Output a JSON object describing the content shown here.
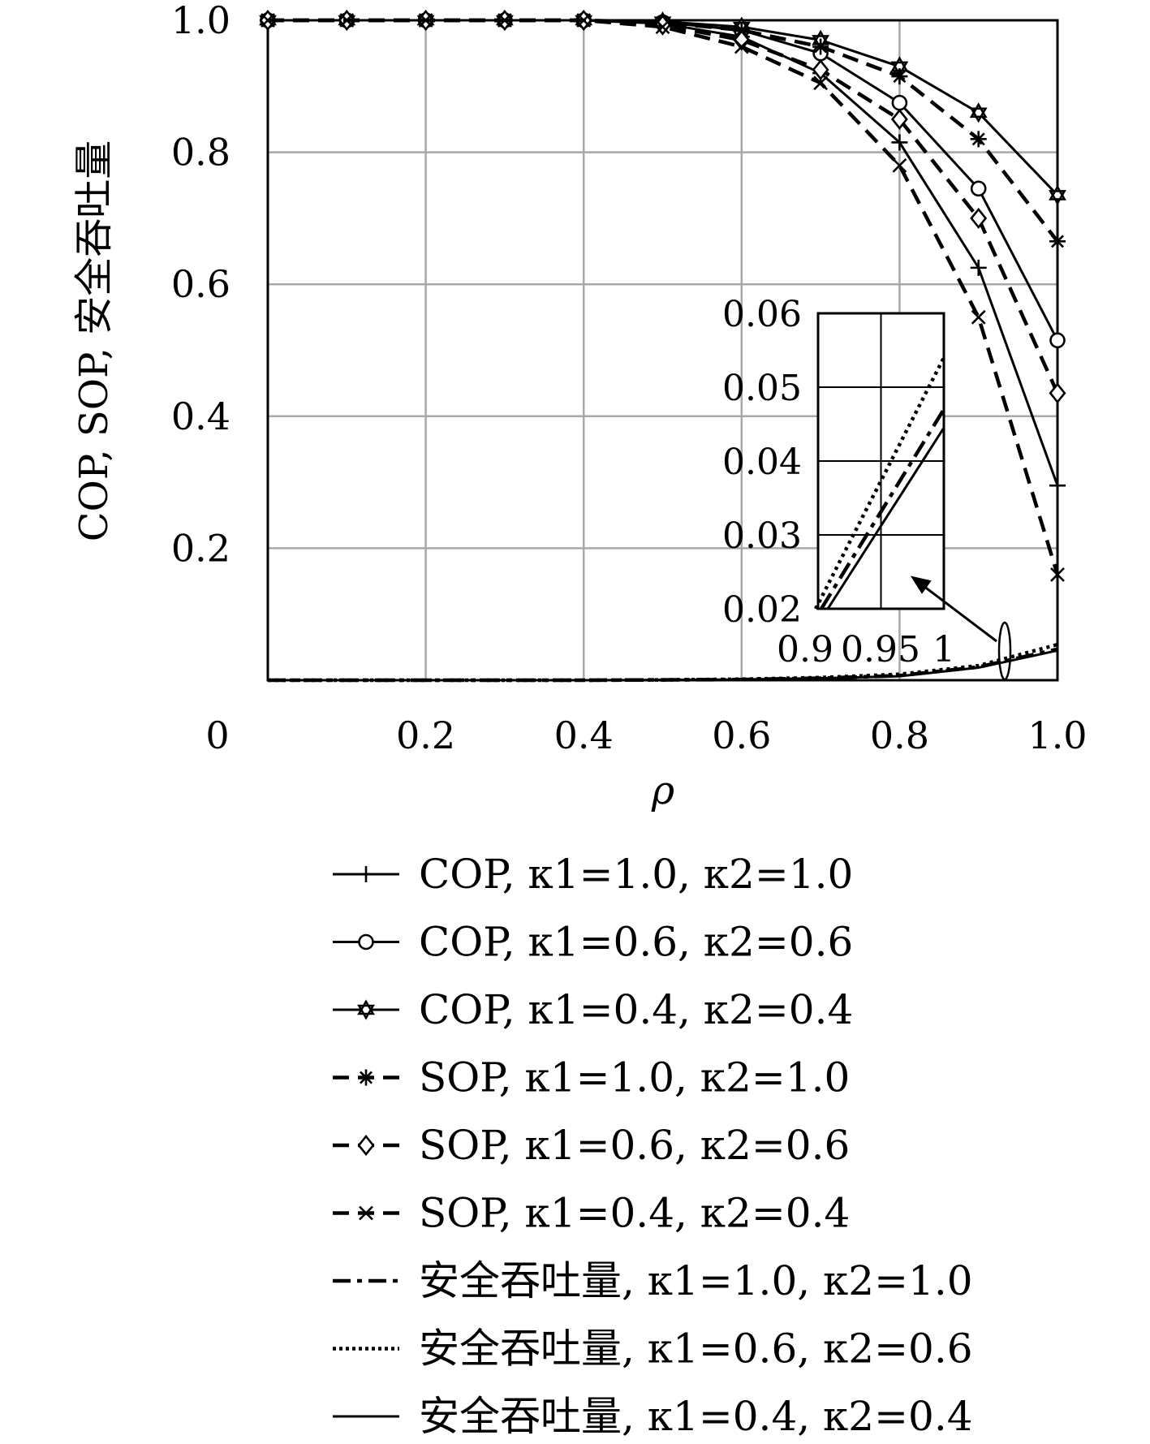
{
  "chart_data": {
    "type": "line",
    "xlabel": "ρ",
    "ylabel": "COP, SOP, 安全吞吐量",
    "xlim": [
      0,
      1.0
    ],
    "ylim": [
      0,
      1.0
    ],
    "x_ticks": [
      "0",
      "0.2",
      "0.4",
      "0.6",
      "0.8",
      "1.0"
    ],
    "y_ticks": [
      "0.2",
      "0.4",
      "0.6",
      "0.8",
      "1.0"
    ],
    "grid": true,
    "legend_position": "below",
    "series": [
      {
        "name": "COP, κ1=1.0, κ2=1.0",
        "linestyle": "solid",
        "marker": "plus",
        "x": [
          0,
          0.1,
          0.2,
          0.3,
          0.4,
          0.5,
          0.6,
          0.7,
          0.8,
          0.9,
          1.0
        ],
        "y": [
          1.0,
          1.0,
          1.0,
          1.0,
          1.0,
          0.995,
          0.975,
          0.92,
          0.815,
          0.625,
          0.295
        ]
      },
      {
        "name": "COP, κ1=0.6, κ2=0.6",
        "linestyle": "solid",
        "marker": "circle",
        "x": [
          0,
          0.1,
          0.2,
          0.3,
          0.4,
          0.5,
          0.6,
          0.7,
          0.8,
          0.9,
          1.0
        ],
        "y": [
          1.0,
          1.0,
          1.0,
          1.0,
          1.0,
          0.997,
          0.985,
          0.95,
          0.875,
          0.745,
          0.515
        ]
      },
      {
        "name": "COP, κ1=0.4, κ2=0.4",
        "linestyle": "solid",
        "marker": "star",
        "x": [
          0,
          0.1,
          0.2,
          0.3,
          0.4,
          0.5,
          0.6,
          0.7,
          0.8,
          0.9,
          1.0
        ],
        "y": [
          1.0,
          1.0,
          1.0,
          1.0,
          1.0,
          0.998,
          0.99,
          0.97,
          0.93,
          0.86,
          0.735
        ]
      },
      {
        "name": "SOP, κ1=1.0, κ2=1.0",
        "linestyle": "dashed",
        "marker": "asterisk",
        "x": [
          0,
          0.1,
          0.2,
          0.3,
          0.4,
          0.5,
          0.6,
          0.7,
          0.8,
          0.9,
          1.0
        ],
        "y": [
          1.0,
          1.0,
          1.0,
          1.0,
          1.0,
          0.997,
          0.985,
          0.96,
          0.915,
          0.82,
          0.665
        ]
      },
      {
        "name": "SOP, κ1=0.6, κ2=0.6",
        "linestyle": "dashed",
        "marker": "diamond",
        "x": [
          0,
          0.1,
          0.2,
          0.3,
          0.4,
          0.5,
          0.6,
          0.7,
          0.8,
          0.9,
          1.0
        ],
        "y": [
          1.0,
          1.0,
          1.0,
          1.0,
          1.0,
          0.993,
          0.97,
          0.925,
          0.85,
          0.7,
          0.435
        ]
      },
      {
        "name": "SOP, κ1=0.4, κ2=0.4",
        "linestyle": "dashed",
        "marker": "x",
        "x": [
          0,
          0.1,
          0.2,
          0.3,
          0.4,
          0.5,
          0.6,
          0.7,
          0.8,
          0.9,
          1.0
        ],
        "y": [
          1.0,
          1.0,
          1.0,
          1.0,
          1.0,
          0.99,
          0.96,
          0.905,
          0.78,
          0.55,
          0.16
        ]
      },
      {
        "name": "安全吞吐量, κ1=1.0, κ2=1.0",
        "linestyle": "dashdot",
        "marker": "none",
        "x": [
          0,
          0.1,
          0.2,
          0.3,
          0.4,
          0.5,
          0.6,
          0.7,
          0.8,
          0.9,
          1.0
        ],
        "y": [
          0,
          0,
          0,
          0,
          0,
          0.0005,
          0.001,
          0.003,
          0.007,
          0.02,
          0.047
        ]
      },
      {
        "name": "安全吞吐量, κ1=0.6, κ2=0.6",
        "linestyle": "dotted",
        "marker": "none",
        "x": [
          0,
          0.1,
          0.2,
          0.3,
          0.4,
          0.5,
          0.6,
          0.7,
          0.8,
          0.9,
          1.0
        ],
        "y": [
          0,
          0,
          0,
          0,
          0,
          0.0005,
          0.0015,
          0.004,
          0.009,
          0.022,
          0.054
        ]
      },
      {
        "name": "安全吞吐量, κ1=0.4, κ2=0.4",
        "linestyle": "solid",
        "marker": "none",
        "x": [
          0,
          0.1,
          0.2,
          0.3,
          0.4,
          0.5,
          0.6,
          0.7,
          0.8,
          0.9,
          1.0
        ],
        "y": [
          0,
          0,
          0,
          0,
          0,
          0.0005,
          0.001,
          0.003,
          0.006,
          0.019,
          0.045
        ]
      }
    ],
    "inset": {
      "xlim": [
        0.9,
        1.0
      ],
      "ylim": [
        0.02,
        0.06
      ],
      "x_ticks": [
        "0.9",
        "0.95",
        "1"
      ],
      "y_ticks": [
        "0.02",
        "0.03",
        "0.04",
        "0.05",
        "0.06"
      ],
      "lines": [
        {
          "series": "安全吞吐量, κ1=0.6, κ2=0.6",
          "x": [
            0.9,
            1.0
          ],
          "y": [
            0.02,
            0.054
          ]
        },
        {
          "series": "安全吞吐量, κ1=1.0, κ2=1.0",
          "x": [
            0.9,
            1.0
          ],
          "y": [
            0.02,
            0.047
          ]
        },
        {
          "series": "安全吞吐量, κ1=0.4, κ2=0.4",
          "x": [
            0.9,
            1.0
          ],
          "y": [
            0.02,
            0.0445
          ]
        }
      ]
    }
  }
}
